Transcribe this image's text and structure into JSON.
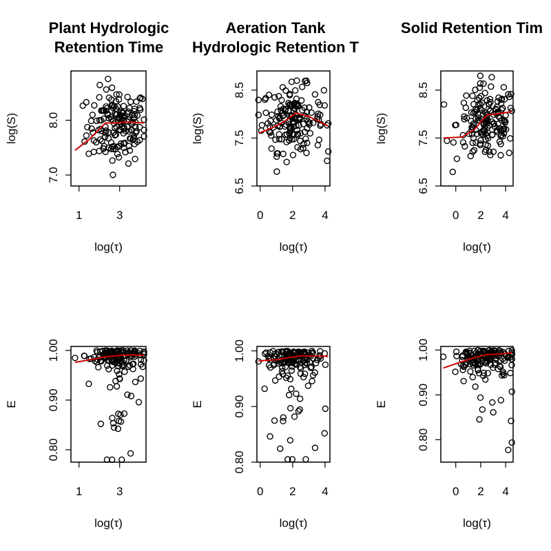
{
  "chart_data": [
    {
      "type": "scatter",
      "title": [
        "Plant Hydrologic",
        "Retention Time"
      ],
      "xlabel": "log(τ)",
      "ylabel": "log(S)",
      "xlim": [
        0.6,
        4.3
      ],
      "ylim": [
        6.8,
        8.9
      ],
      "xticks": [
        1,
        3
      ],
      "yticks": [
        7.0,
        8.0
      ],
      "ytick_labels": [
        "7.0",
        "8.0"
      ],
      "cloud": {
        "x_range": [
          0.8,
          4.2
        ],
        "y_range": [
          6.9,
          8.8
        ],
        "center": [
          2.9,
          7.9
        ]
      },
      "series": [
        {
          "name": "",
          "color": "#d00000",
          "x": [
            0.8,
            1.5,
            2.3,
            2.8,
            3.3,
            4.2
          ],
          "y": [
            7.45,
            7.65,
            7.95,
            7.95,
            7.97,
            7.95
          ]
        }
      ]
    },
    {
      "type": "scatter",
      "title": [
        "Aeration Tank",
        "Hydrologic Retention T"
      ],
      "xlabel": "log(τ)",
      "ylabel": "log(S)",
      "xlim": [
        -0.2,
        4.3
      ],
      "ylim": [
        6.5,
        8.9
      ],
      "xticks": [
        0,
        2,
        4
      ],
      "yticks": [
        6.5,
        7.5,
        8.5
      ],
      "ytick_labels": [
        "6.5",
        "7.5",
        "8.5"
      ],
      "cloud": {
        "x_range": [
          -0.1,
          4.2
        ],
        "y_range": [
          6.8,
          8.7
        ],
        "center": [
          2.0,
          7.9
        ]
      },
      "series": [
        {
          "name": "",
          "color": "#d00000",
          "x": [
            -0.1,
            0.8,
            1.5,
            2.2,
            3.0,
            4.2
          ],
          "y": [
            7.6,
            7.72,
            7.85,
            8.02,
            7.95,
            7.75
          ]
        }
      ]
    },
    {
      "type": "scatter",
      "title": [
        "Solid Retention Tim"
      ],
      "xlabel": "log(τ)",
      "ylabel": "log(S)",
      "xlim": [
        -1.2,
        4.6
      ],
      "ylim": [
        6.5,
        8.9
      ],
      "xticks": [
        0,
        2,
        4
      ],
      "yticks": [
        6.5,
        7.5,
        8.5
      ],
      "ytick_labels": [
        "6.5",
        "7.5",
        "8.5"
      ],
      "cloud": {
        "x_range": [
          -1.0,
          4.5
        ],
        "y_range": [
          6.6,
          8.8
        ],
        "center": [
          2.5,
          7.8
        ]
      },
      "series": [
        {
          "name": "",
          "color": "#d00000",
          "x": [
            -1.0,
            0.5,
            1.5,
            2.5,
            3.2,
            4.5
          ],
          "y": [
            7.5,
            7.52,
            7.68,
            7.98,
            8.0,
            8.05
          ]
        }
      ]
    },
    {
      "type": "scatter",
      "title": [],
      "xlabel": "log(τ)",
      "ylabel": "E",
      "xlim": [
        0.6,
        4.3
      ],
      "ylim": [
        0.775,
        1.008
      ],
      "xticks": [
        1,
        3
      ],
      "yticks": [
        0.8,
        0.9,
        1.0
      ],
      "ytick_labels": [
        "0.80",
        "0.90",
        "1.00"
      ],
      "cloud": {
        "x_range": [
          0.8,
          4.2
        ],
        "y_range": [
          0.78,
          1.0
        ],
        "center": [
          2.8,
          0.985
        ]
      },
      "series": [
        {
          "name": "",
          "color": "#d00000",
          "x": [
            0.8,
            1.5,
            2.3,
            3.0,
            3.6,
            4.2
          ],
          "y": [
            0.976,
            0.981,
            0.987,
            0.99,
            0.991,
            0.99
          ]
        }
      ]
    },
    {
      "type": "scatter",
      "title": [],
      "xlabel": "log(τ)",
      "ylabel": "E",
      "xlim": [
        -0.2,
        4.3
      ],
      "ylim": [
        0.8,
        1.008
      ],
      "xticks": [
        0,
        2,
        4
      ],
      "yticks": [
        0.8,
        0.9,
        1.0
      ],
      "ytick_labels": [
        "0.80",
        "0.90",
        "1.00"
      ],
      "cloud": {
        "x_range": [
          -0.1,
          4.2
        ],
        "y_range": [
          0.805,
          1.0
        ],
        "center": [
          2.0,
          0.985
        ]
      },
      "series": [
        {
          "name": "",
          "color": "#d00000",
          "x": [
            -0.1,
            1.0,
            1.8,
            2.5,
            3.3,
            4.2
          ],
          "y": [
            0.982,
            0.984,
            0.988,
            0.991,
            0.991,
            0.99
          ]
        }
      ]
    },
    {
      "type": "scatter",
      "title": [],
      "xlabel": "log(τ)",
      "ylabel": "E",
      "xlim": [
        -1.2,
        4.6
      ],
      "ylim": [
        0.75,
        1.008
      ],
      "xticks": [
        0,
        2,
        4
      ],
      "yticks": [
        0.8,
        0.9,
        1.0
      ],
      "ytick_labels": [
        "0.80",
        "0.90",
        "1.00"
      ],
      "cloud": {
        "x_range": [
          -1.0,
          4.5
        ],
        "y_range": [
          0.76,
          1.0
        ],
        "center": [
          2.5,
          0.985
        ]
      },
      "series": [
        {
          "name": "",
          "color": "#d00000",
          "x": [
            -1.0,
            0.5,
            1.5,
            2.5,
            3.5,
            4.5
          ],
          "y": [
            0.96,
            0.974,
            0.983,
            0.99,
            0.991,
            0.994
          ]
        }
      ]
    }
  ]
}
